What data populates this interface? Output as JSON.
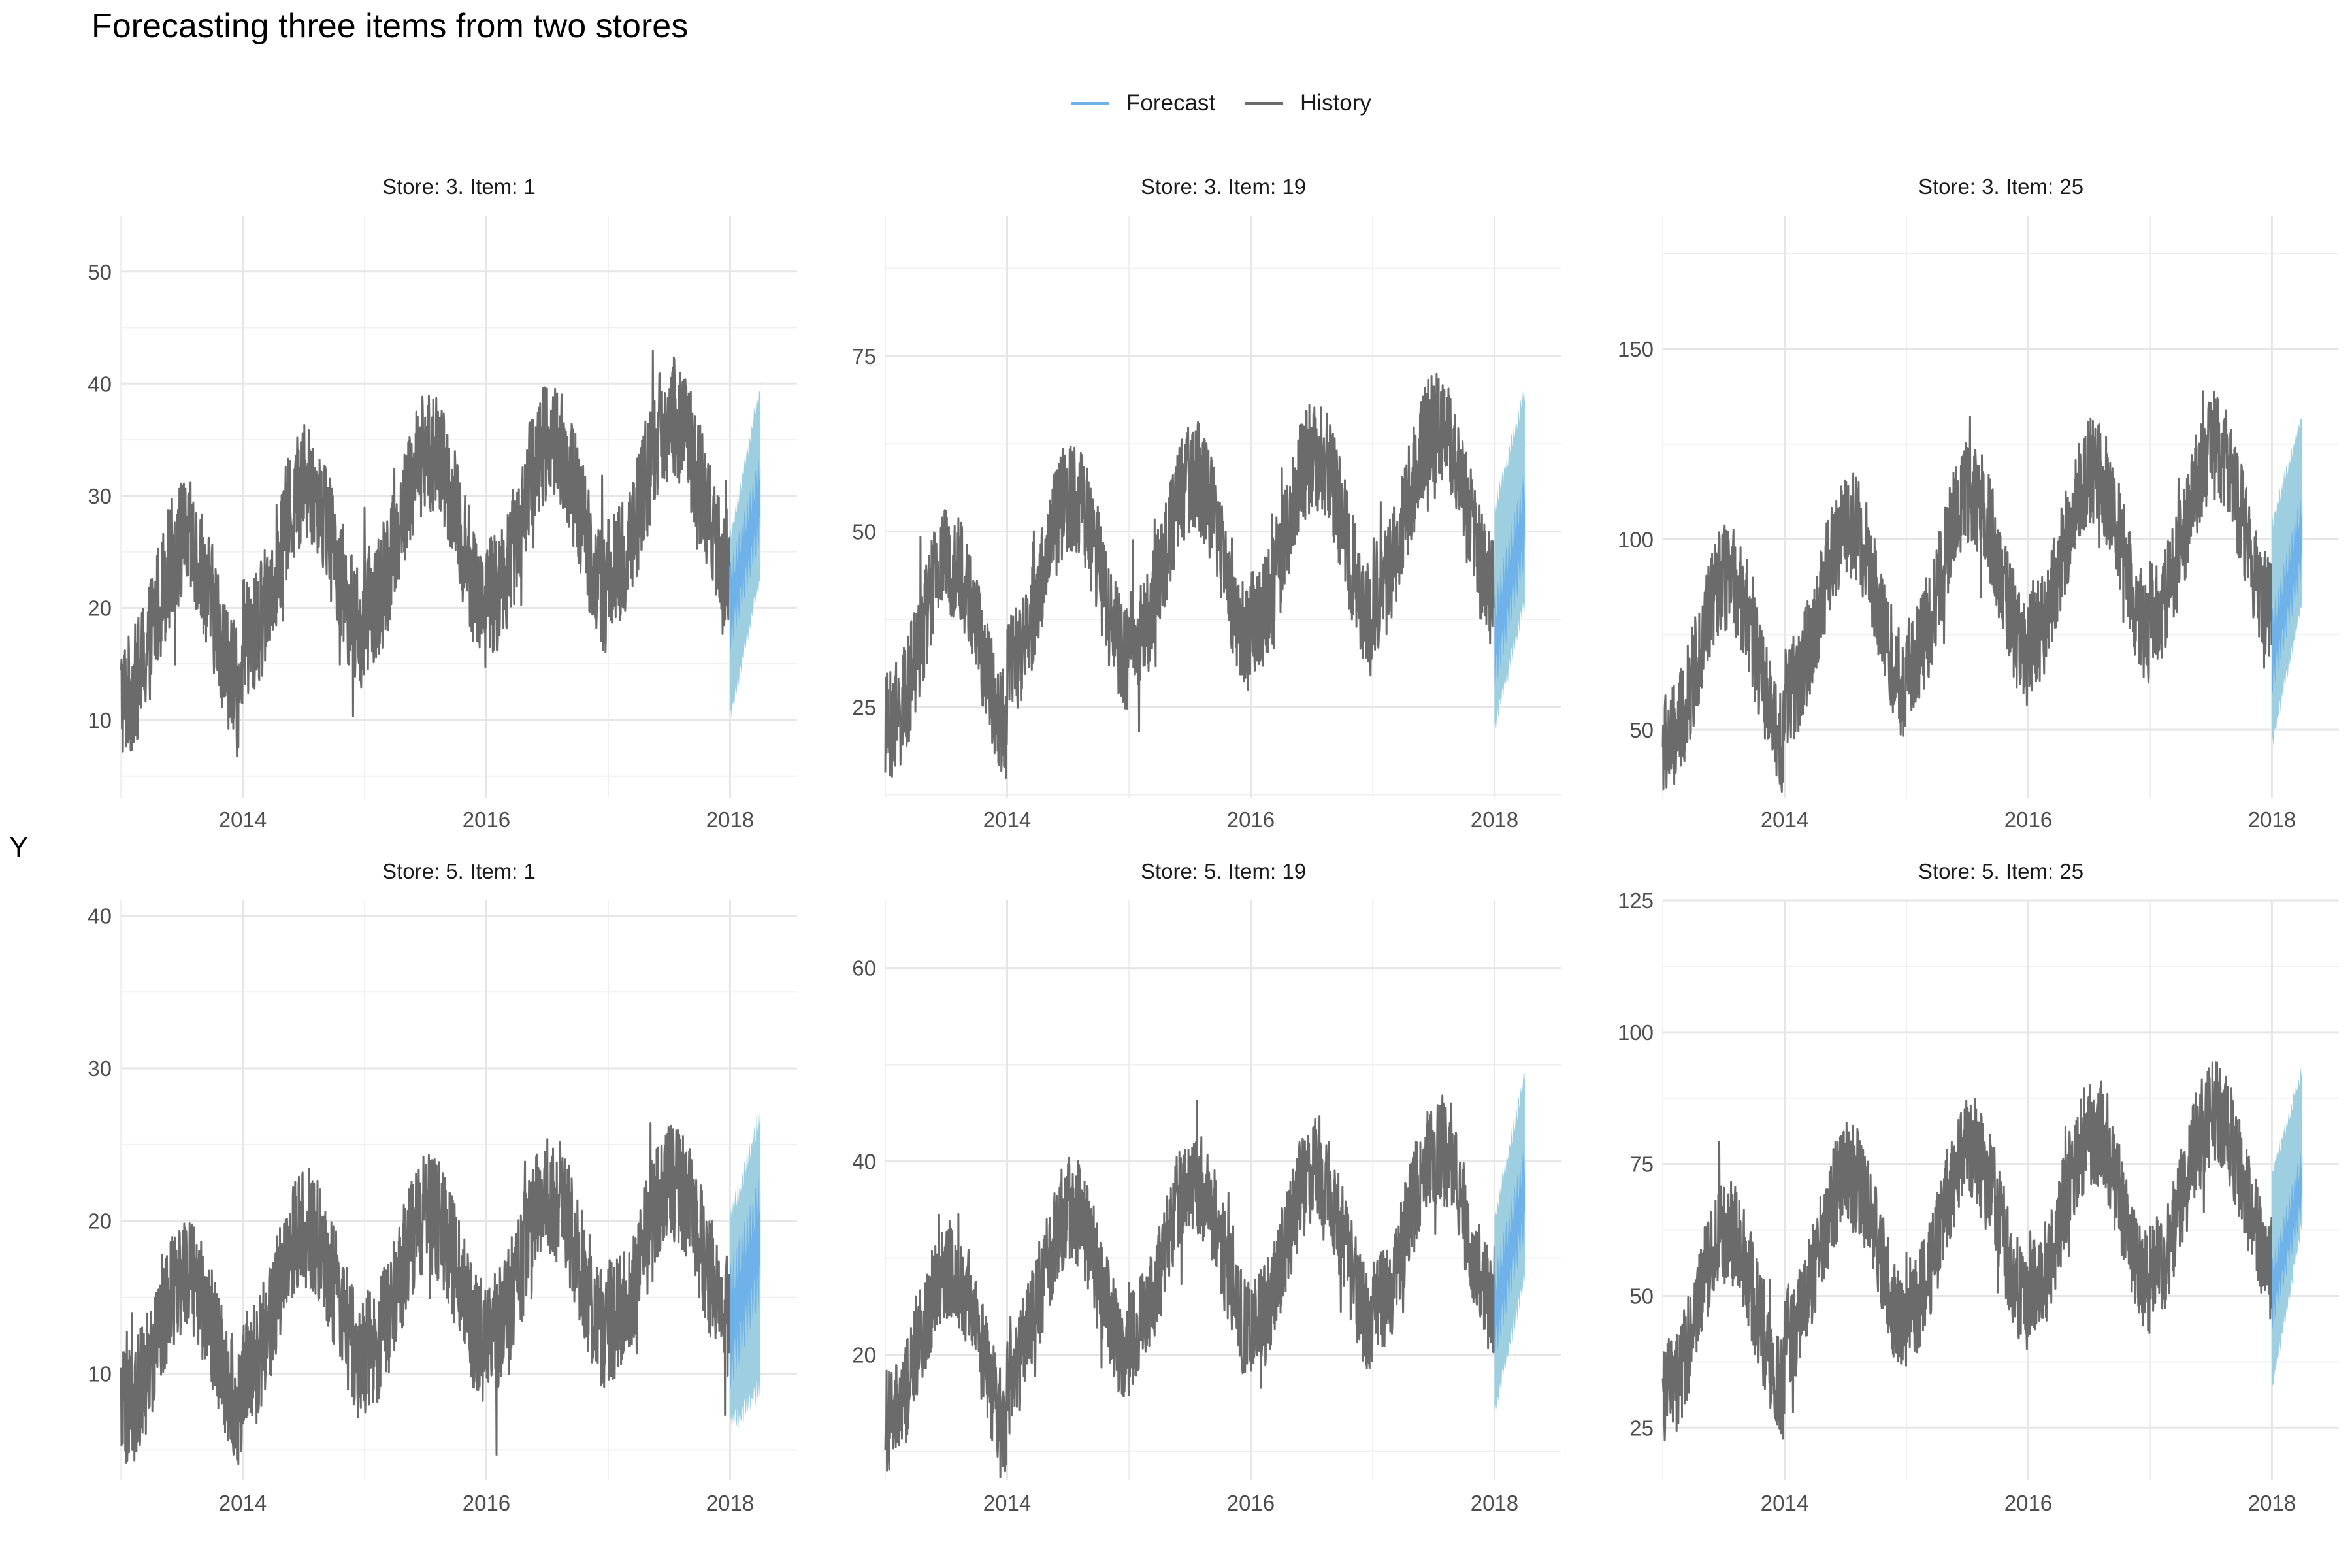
{
  "title": "Forecasting three items from two stores",
  "ylabel": "Y",
  "colors": {
    "forecast": "#6fb1e9",
    "interval": "#9ecfe0",
    "history": "#6b6b6b",
    "grid": "#e6e6e6",
    "axis_text": "#4d4d4d"
  },
  "legend": [
    {
      "label": "Forecast",
      "color": "#6fb1e9"
    },
    {
      "label": "History",
      "color": "#6b6b6b"
    }
  ],
  "chart_data": {
    "type": "line",
    "x_ticks": [
      2014,
      2016,
      2018
    ],
    "xlim": [
      2013.0,
      2018.55
    ],
    "history_range": [
      2013.0,
      2018.0
    ],
    "forecast_range": [
      2018.0,
      2018.25
    ],
    "legend_position": "top",
    "grid": true,
    "panels": [
      {
        "label": "Store: 3. Item: 1",
        "ylim": [
          3,
          55
        ],
        "yticks": [
          10,
          20,
          30,
          40,
          50
        ],
        "yearly_mean": [
          19,
          24,
          27,
          28,
          30
        ],
        "amplitude": 7,
        "noise": 5.5,
        "forecast": {
          "start": 20,
          "end": 30,
          "lower_start": 10,
          "lower_end": 23,
          "upper_start": 26,
          "upper_end": 40
        }
      },
      {
        "label": "Store: 3. Item: 19",
        "ylim": [
          12,
          95
        ],
        "yticks": [
          25,
          50,
          75
        ],
        "yearly_mean": [
          34,
          43,
          46,
          49,
          53
        ],
        "amplitude": 12,
        "noise": 8,
        "forecast": {
          "start": 34,
          "end": 52,
          "lower_start": 22,
          "lower_end": 40,
          "upper_start": 53,
          "upper_end": 70
        }
      },
      {
        "label": "Store: 3. Item: 25",
        "ylim": [
          32,
          185
        ],
        "yticks": [
          50,
          100,
          150
        ],
        "yearly_mean": [
          68,
          82,
          90,
          96,
          102
        ],
        "amplitude": 22,
        "noise": 14,
        "forecast": {
          "start": 70,
          "end": 102,
          "lower_start": 46,
          "lower_end": 84,
          "upper_start": 104,
          "upper_end": 133
        }
      },
      {
        "label": "Store: 5. Item: 1",
        "ylim": [
          3,
          41
        ],
        "yticks": [
          10,
          20,
          30,
          40
        ],
        "yearly_mean": [
          12,
          15,
          16,
          17,
          18
        ],
        "amplitude": 4.5,
        "noise": 4,
        "forecast": {
          "start": 13,
          "end": 19,
          "lower_start": 6.5,
          "lower_end": 9,
          "upper_start": 20,
          "upper_end": 27
        }
      },
      {
        "label": "Store: 5. Item: 19",
        "ylim": [
          7,
          67
        ],
        "yticks": [
          20,
          40,
          60
        ],
        "yearly_mean": [
          21,
          27,
          30,
          31,
          33
        ],
        "amplitude": 8,
        "noise": 5.5,
        "forecast": {
          "start": 24,
          "end": 37,
          "lower_start": 14,
          "lower_end": 28,
          "upper_start": 34,
          "upper_end": 49
        }
      },
      {
        "label": "Store: 5. Item: 25",
        "ylim": [
          15,
          125
        ],
        "yticks": [
          25,
          50,
          75,
          100,
          125
        ],
        "yearly_mean": [
          47,
          58,
          63,
          66,
          70
        ],
        "amplitude": 15,
        "noise": 10,
        "forecast": {
          "start": 50,
          "end": 72,
          "lower_start": 32,
          "lower_end": 64,
          "upper_start": 73,
          "upper_end": 93
        }
      }
    ]
  }
}
